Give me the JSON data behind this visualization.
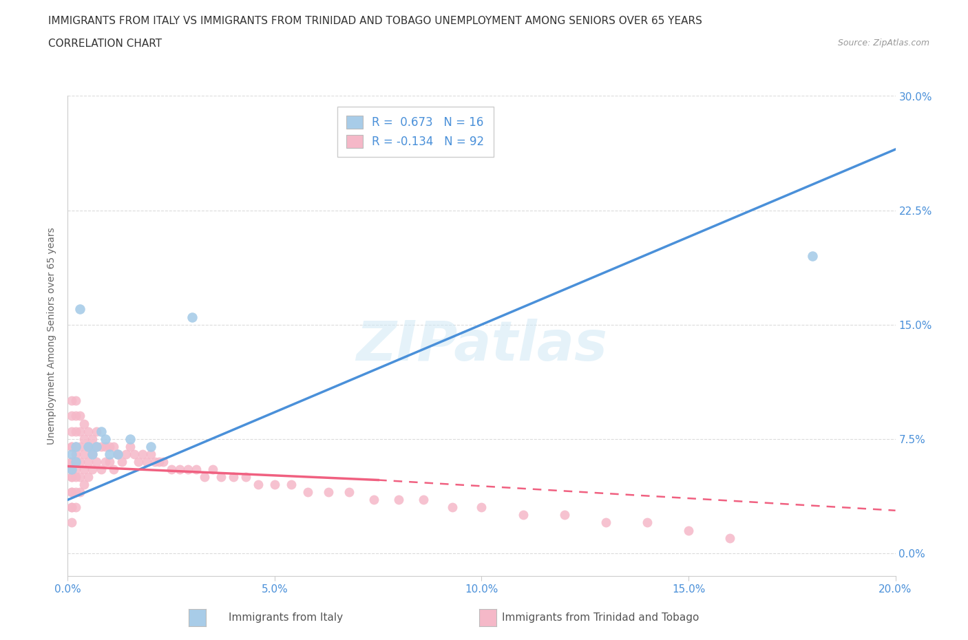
{
  "title_line1": "IMMIGRANTS FROM ITALY VS IMMIGRANTS FROM TRINIDAD AND TOBAGO UNEMPLOYMENT AMONG SENIORS OVER 65 YEARS",
  "title_line2": "CORRELATION CHART",
  "source_text": "Source: ZipAtlas.com",
  "ylabel": "Unemployment Among Seniors over 65 years",
  "watermark": "ZIPatlas",
  "italy_R": 0.673,
  "italy_N": 16,
  "tt_R": -0.134,
  "tt_N": 92,
  "italy_color": "#a8cce8",
  "tt_color": "#f5b8c8",
  "italy_line_color": "#4a90d9",
  "tt_line_color": "#f06080",
  "legend_italy": "Immigrants from Italy",
  "legend_tt": "Immigrants from Trinidad and Tobago",
  "xlim": [
    0.0,
    0.2
  ],
  "ylim": [
    -0.015,
    0.3
  ],
  "xticks": [
    0.0,
    0.05,
    0.1,
    0.15,
    0.2
  ],
  "yticks": [
    0.0,
    0.075,
    0.15,
    0.225,
    0.3
  ],
  "italy_scatter_x": [
    0.001,
    0.001,
    0.002,
    0.002,
    0.003,
    0.005,
    0.006,
    0.007,
    0.008,
    0.009,
    0.01,
    0.012,
    0.015,
    0.02,
    0.03,
    0.18
  ],
  "italy_scatter_y": [
    0.055,
    0.065,
    0.06,
    0.07,
    0.16,
    0.07,
    0.065,
    0.07,
    0.08,
    0.075,
    0.065,
    0.065,
    0.075,
    0.07,
    0.155,
    0.195
  ],
  "tt_scatter_x": [
    0.001,
    0.001,
    0.001,
    0.001,
    0.001,
    0.001,
    0.001,
    0.001,
    0.001,
    0.001,
    0.001,
    0.001,
    0.001,
    0.001,
    0.001,
    0.002,
    0.002,
    0.002,
    0.002,
    0.002,
    0.002,
    0.002,
    0.002,
    0.002,
    0.002,
    0.003,
    0.003,
    0.003,
    0.003,
    0.003,
    0.003,
    0.004,
    0.004,
    0.004,
    0.004,
    0.004,
    0.005,
    0.005,
    0.005,
    0.005,
    0.006,
    0.006,
    0.006,
    0.007,
    0.007,
    0.007,
    0.008,
    0.008,
    0.009,
    0.009,
    0.01,
    0.01,
    0.011,
    0.011,
    0.012,
    0.013,
    0.014,
    0.015,
    0.016,
    0.017,
    0.018,
    0.019,
    0.02,
    0.021,
    0.022,
    0.023,
    0.025,
    0.027,
    0.029,
    0.031,
    0.033,
    0.035,
    0.037,
    0.04,
    0.043,
    0.046,
    0.05,
    0.054,
    0.058,
    0.063,
    0.068,
    0.074,
    0.08,
    0.086,
    0.093,
    0.1,
    0.11,
    0.12,
    0.13,
    0.14,
    0.15,
    0.16
  ],
  "tt_scatter_y": [
    0.02,
    0.03,
    0.03,
    0.04,
    0.04,
    0.05,
    0.05,
    0.055,
    0.06,
    0.06,
    0.07,
    0.07,
    0.08,
    0.09,
    0.1,
    0.03,
    0.04,
    0.05,
    0.055,
    0.06,
    0.065,
    0.07,
    0.08,
    0.09,
    0.1,
    0.04,
    0.05,
    0.06,
    0.07,
    0.08,
    0.09,
    0.045,
    0.055,
    0.065,
    0.075,
    0.085,
    0.05,
    0.06,
    0.07,
    0.08,
    0.055,
    0.065,
    0.075,
    0.06,
    0.07,
    0.08,
    0.055,
    0.07,
    0.06,
    0.07,
    0.06,
    0.07,
    0.055,
    0.07,
    0.065,
    0.06,
    0.065,
    0.07,
    0.065,
    0.06,
    0.065,
    0.06,
    0.065,
    0.06,
    0.06,
    0.06,
    0.055,
    0.055,
    0.055,
    0.055,
    0.05,
    0.055,
    0.05,
    0.05,
    0.05,
    0.045,
    0.045,
    0.045,
    0.04,
    0.04,
    0.04,
    0.035,
    0.035,
    0.035,
    0.03,
    0.03,
    0.025,
    0.025,
    0.02,
    0.02,
    0.015,
    0.01
  ],
  "italy_line_x0": 0.0,
  "italy_line_y0": 0.035,
  "italy_line_x1": 0.2,
  "italy_line_y1": 0.265,
  "tt_line_x0": 0.0,
  "tt_line_y0": 0.057,
  "tt_line_x1_solid": 0.075,
  "tt_line_y1_solid": 0.048,
  "tt_line_x1_dash": 0.2,
  "tt_line_y1_dash": 0.028,
  "background_color": "#ffffff",
  "grid_color": "#cccccc"
}
